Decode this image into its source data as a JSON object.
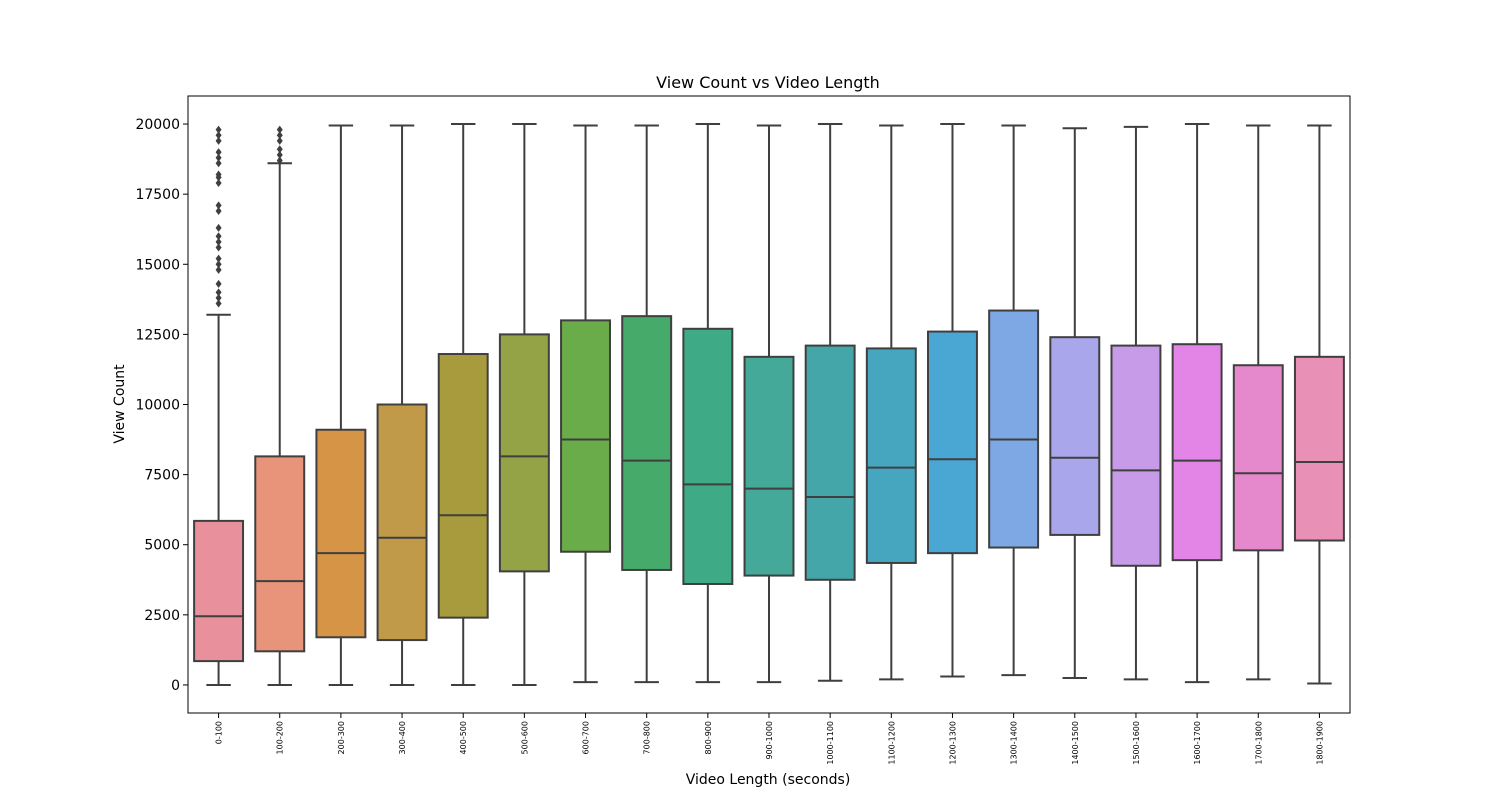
{
  "chart_data": {
    "type": "box",
    "title": "View Count vs Video Length",
    "xlabel": "Video Length (seconds)",
    "ylabel": "View Count",
    "ylim": [
      -1000,
      21000
    ],
    "yticks": [
      0,
      2500,
      5000,
      7500,
      10000,
      12500,
      15000,
      17500,
      20000
    ],
    "ytick_labels": [
      "0",
      "2500",
      "5000",
      "7500",
      "10000",
      "12500",
      "15000",
      "17500",
      "20000"
    ],
    "grid": false,
    "legend": "none",
    "categories": [
      "0-100",
      "100-200",
      "200-300",
      "300-400",
      "400-500",
      "500-600",
      "600-700",
      "700-800",
      "800-900",
      "900-1000",
      "1000-1100",
      "1100-1200",
      "1200-1300",
      "1300-1400",
      "1400-1500",
      "1500-1600",
      "1600-1700",
      "1700-1800",
      "1800-1900"
    ],
    "colors": [
      "#e8919c",
      "#e8947a",
      "#d69447",
      "#c09a48",
      "#a89b3e",
      "#94a345",
      "#6aab4a",
      "#45aa6a",
      "#3eab86",
      "#45a99a",
      "#44a6a9",
      "#46a6bf",
      "#4aa7d4",
      "#7ea8e3",
      "#aaa6ec",
      "#c79be7",
      "#e285e7",
      "#e689cc",
      "#e890b6"
    ],
    "boxes": [
      {
        "whislo": 0,
        "q1": 850,
        "med": 2450,
        "q3": 5850,
        "whishi": 13200,
        "fliers": [
          13600,
          13800,
          14000,
          14300,
          14800,
          15000,
          15200,
          15600,
          15800,
          16000,
          16300,
          16900,
          17100,
          17900,
          18100,
          18200,
          18600,
          18800,
          19000,
          19400,
          19600,
          19800
        ]
      },
      {
        "whislo": 0,
        "q1": 1200,
        "med": 3700,
        "q3": 8150,
        "whishi": 18600,
        "fliers": [
          18700,
          18900,
          19100,
          19400,
          19600,
          19800
        ]
      },
      {
        "whislo": 0,
        "q1": 1700,
        "med": 4700,
        "q3": 9100,
        "whishi": 19950,
        "fliers": []
      },
      {
        "whislo": 0,
        "q1": 1600,
        "med": 5250,
        "q3": 10000,
        "whishi": 19950,
        "fliers": []
      },
      {
        "whislo": 0,
        "q1": 2400,
        "med": 6050,
        "q3": 11800,
        "whishi": 20000,
        "fliers": []
      },
      {
        "whislo": 0,
        "q1": 4050,
        "med": 8150,
        "q3": 12500,
        "whishi": 20000,
        "fliers": []
      },
      {
        "whislo": 100,
        "q1": 4750,
        "med": 8750,
        "q3": 13000,
        "whishi": 19950,
        "fliers": []
      },
      {
        "whislo": 100,
        "q1": 4100,
        "med": 8000,
        "q3": 13150,
        "whishi": 19950,
        "fliers": []
      },
      {
        "whislo": 100,
        "q1": 3600,
        "med": 7150,
        "q3": 12700,
        "whishi": 20000,
        "fliers": []
      },
      {
        "whislo": 100,
        "q1": 3900,
        "med": 7000,
        "q3": 11700,
        "whishi": 19950,
        "fliers": []
      },
      {
        "whislo": 150,
        "q1": 3750,
        "med": 6700,
        "q3": 12100,
        "whishi": 20000,
        "fliers": []
      },
      {
        "whislo": 200,
        "q1": 4350,
        "med": 7750,
        "q3": 12000,
        "whishi": 19950,
        "fliers": []
      },
      {
        "whislo": 300,
        "q1": 4700,
        "med": 8050,
        "q3": 12600,
        "whishi": 20000,
        "fliers": []
      },
      {
        "whislo": 350,
        "q1": 4900,
        "med": 8750,
        "q3": 13350,
        "whishi": 19950,
        "fliers": []
      },
      {
        "whislo": 250,
        "q1": 5350,
        "med": 8100,
        "q3": 12400,
        "whishi": 19850,
        "fliers": []
      },
      {
        "whislo": 200,
        "q1": 4250,
        "med": 7650,
        "q3": 12100,
        "whishi": 19900,
        "fliers": []
      },
      {
        "whislo": 100,
        "q1": 4450,
        "med": 8000,
        "q3": 12150,
        "whishi": 20000,
        "fliers": []
      },
      {
        "whislo": 200,
        "q1": 4800,
        "med": 7550,
        "q3": 11400,
        "whishi": 19950,
        "fliers": []
      },
      {
        "whislo": 50,
        "q1": 5150,
        "med": 7950,
        "q3": 11700,
        "whishi": 19950,
        "fliers": []
      }
    ]
  }
}
